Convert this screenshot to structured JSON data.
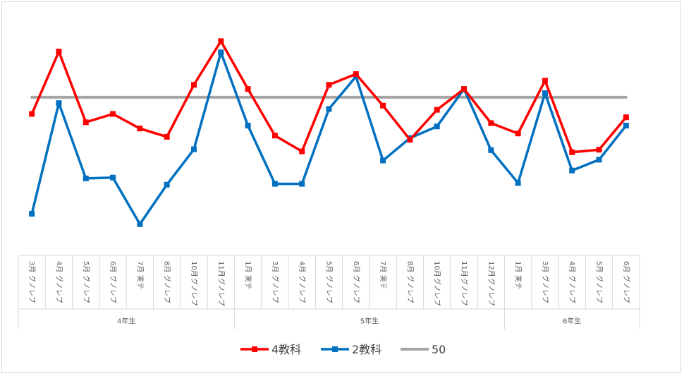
{
  "chart_data": {
    "type": "line",
    "categories": [
      {
        "month": "3月",
        "type": "グノレプ"
      },
      {
        "month": "4月",
        "type": "グノレプ"
      },
      {
        "month": "5月",
        "type": "グノレプ"
      },
      {
        "month": "6月",
        "type": "グノレプ"
      },
      {
        "month": "7月",
        "type": "実テ"
      },
      {
        "month": "8月",
        "type": "グノレプ"
      },
      {
        "month": "10月",
        "type": "グノレプ"
      },
      {
        "month": "11月",
        "type": "グノレプ"
      },
      {
        "month": "1月",
        "type": "実テ"
      },
      {
        "month": "3月",
        "type": "グノレプ"
      },
      {
        "month": "4月",
        "type": "グノレプ"
      },
      {
        "month": "5月",
        "type": "グノレプ"
      },
      {
        "month": "6月",
        "type": "グノレプ"
      },
      {
        "month": "7月",
        "type": "実テ"
      },
      {
        "month": "8月",
        "type": "グノレプ"
      },
      {
        "month": "10月",
        "type": "グノレプ"
      },
      {
        "month": "11月",
        "type": "グノレプ"
      },
      {
        "month": "12月",
        "type": "グノレプ"
      },
      {
        "month": "1月",
        "type": "実テ"
      },
      {
        "month": "3月",
        "type": "グノレプ"
      },
      {
        "month": "4月",
        "type": "グノレプ"
      },
      {
        "month": "5月",
        "type": "グノレプ"
      },
      {
        "month": "6月",
        "type": "グノレプ"
      }
    ],
    "groups": [
      {
        "label": "4年生",
        "start": 0,
        "count": 8
      },
      {
        "label": "5年生",
        "start": 8,
        "count": 10
      },
      {
        "label": "6年生",
        "start": 18,
        "count": 5
      }
    ],
    "series": [
      {
        "name": "4教科",
        "color": "#ff0000",
        "values": [
          46,
          61,
          44,
          46,
          42.5,
          40.5,
          53,
          63.5,
          52,
          40.8,
          37,
          53,
          55.6,
          48,
          39.8,
          47,
          52,
          43.8,
          41.3,
          54,
          36.8,
          37.4,
          45.2
        ]
      },
      {
        "name": "2教科",
        "color": "#0070c0",
        "values": [
          22,
          48.6,
          30.5,
          30.7,
          19.5,
          29,
          37.5,
          60.8,
          43.2,
          29.2,
          29.2,
          47.2,
          55,
          34.8,
          40.2,
          43,
          52,
          37.3,
          29.4,
          51,
          32.4,
          35,
          43.2
        ]
      },
      {
        "name": "50",
        "color": "#a5a5a5",
        "values": [
          50,
          50,
          50,
          50,
          50,
          50,
          50,
          50,
          50,
          50,
          50,
          50,
          50,
          50,
          50,
          50,
          50,
          50,
          50,
          50,
          50,
          50,
          50
        ]
      }
    ],
    "ylim": [
      12,
      70
    ],
    "grid": false,
    "legend": "bottom"
  }
}
